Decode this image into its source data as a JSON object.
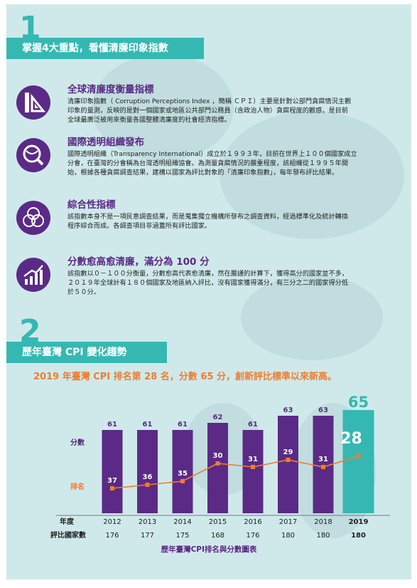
{
  "section1": {
    "number": "1",
    "title": "掌握4大重點，看懂清廉印象指數",
    "items": [
      {
        "icon": "ruler-triangle-icon",
        "title": "全球清廉度衡量指標",
        "lines": [
          "清廉印象指數（ Corruption Perceptions Index ，簡稱 ＣＰＩ）主要是針對公部門貪腐情況主觀",
          "印象的量測，反映的是對一個國家或地區公共部門公務員（含政治人物）貪腐程度的觀感，是目前",
          "全球最廣泛被用來衡量各國整體清廉度的社會經濟指標。"
        ]
      },
      {
        "icon": "globe-magnifier-icon",
        "title": "國際透明組織發布",
        "lines": [
          "國際透明組織（Transparency International）成立於１９９３年，目前在世界上１００個國家成立",
          "分會，在臺灣的分會稱為台灣透明組織協會。為測量貪腐情況的嚴重程度，該組織從１９９５年開",
          "始，根據各種貪腐調查結果，建構以國家為評比對象的「清廉印象指數」，每年發布評比結果。"
        ]
      },
      {
        "icon": "venn-circles-icon",
        "title": "綜合性指標",
        "lines": [
          "該指數本身不是一項民意調查結果，而是蒐集獨立機構所發布之調查資料，經過標準化及統計轉換",
          "程序綜合而成。各調查項目非涵蓋所有評比國家。"
        ]
      },
      {
        "icon": "rising-chart-icon",
        "title": "分數愈高愈清廉，滿分為 100 分",
        "lines": [
          "該指數以０－１００分衡量，分數愈高代表愈清廉，然在嚴謹的計算下，獲得高分的國家並不多，",
          "２０１９年全球計有１８０個國家及地區納入評比，沒有國家獲得滿分，有三分之二的國家得分低",
          "於５０分。"
        ]
      }
    ]
  },
  "section2": {
    "number": "2",
    "title": "歷年臺灣 CPI 變化趨勢",
    "headline": "2019 年臺灣 CPI 排名第 28 名，分數 65 分，創新評比標準以來新高。",
    "caption": "歷年臺灣CPI排名與分數圖表"
  },
  "chart_data": {
    "type": "bar",
    "title": "歷年臺灣CPI排名與分數圖表",
    "row_labels": {
      "score": "分數",
      "rank": "排名",
      "year": "年度",
      "countries": "評比國家數"
    },
    "categories": [
      "2012",
      "2013",
      "2014",
      "2015",
      "2016",
      "2017",
      "2018",
      "2019"
    ],
    "series": [
      {
        "name": "分數",
        "type": "bar",
        "values": [
          61,
          61,
          61,
          62,
          61,
          63,
          63,
          65
        ]
      },
      {
        "name": "排名",
        "type": "line",
        "values": [
          37,
          36,
          35,
          30,
          31,
          29,
          31,
          28
        ]
      }
    ],
    "countries": [
      "176",
      "177",
      "175",
      "168",
      "176",
      "180",
      "180",
      "180"
    ],
    "highlight_category": "2019",
    "colors": {
      "bar": "#5b2a86",
      "highlight_bar": "#35b8b2",
      "line": "#f07d2e"
    }
  }
}
